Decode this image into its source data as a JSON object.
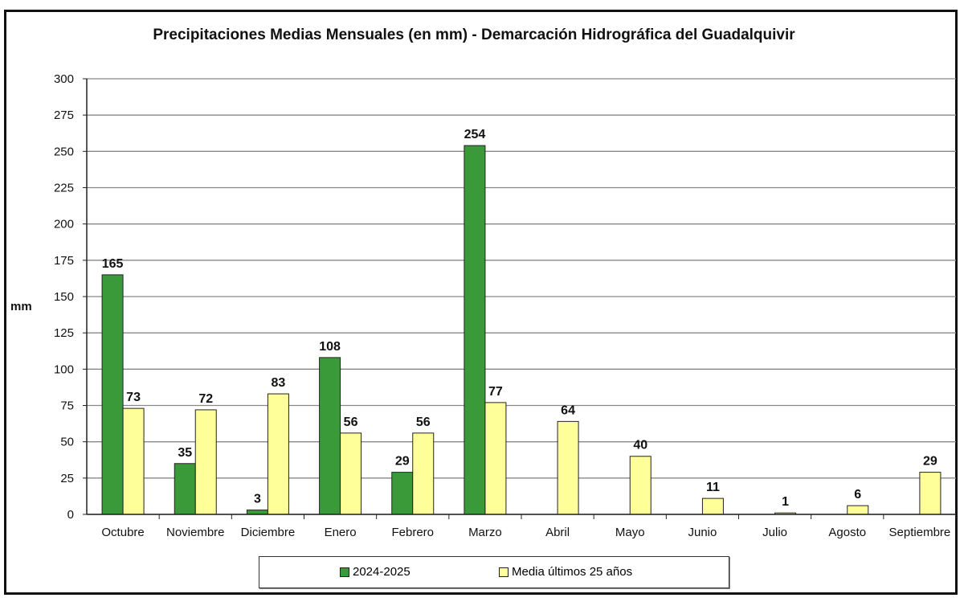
{
  "chart_data": {
    "type": "bar",
    "title": "Precipitaciones Medias Mensuales (en mm) - Demarcación Hidrográfica del Guadalquivir",
    "xlabel": "",
    "ylabel": "mm",
    "ylim": [
      0,
      300
    ],
    "yticks": [
      "0",
      "25",
      "50",
      "75",
      "100",
      "125",
      "150",
      "175",
      "200",
      "225",
      "250",
      "275",
      "300"
    ],
    "grid": true,
    "legend_position": "bottom",
    "categories": [
      "Octubre",
      "Noviembre",
      "Diciembre",
      "Enero",
      "Febrero",
      "Marzo",
      "Abril",
      "Mayo",
      "Junio",
      "Julio",
      "Agosto",
      "Septiembre"
    ],
    "series": [
      {
        "name": "2024-2025",
        "color": "#3a9a3a",
        "values": [
          165,
          35,
          3,
          108,
          29,
          254,
          null,
          null,
          null,
          null,
          null,
          null
        ]
      },
      {
        "name": "Media últimos 25 años",
        "color": "#ffff99",
        "values": [
          73,
          72,
          83,
          56,
          56,
          77,
          64,
          40,
          11,
          1,
          6,
          29
        ]
      }
    ]
  }
}
